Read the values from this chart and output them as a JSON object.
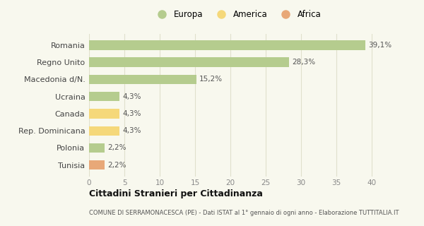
{
  "categories": [
    "Romania",
    "Regno Unito",
    "Macedonia d/N.",
    "Ucraina",
    "Canada",
    "Rep. Dominicana",
    "Polonia",
    "Tunisia"
  ],
  "values": [
    39.1,
    28.3,
    15.2,
    4.3,
    4.3,
    4.3,
    2.2,
    2.2
  ],
  "labels": [
    "39,1%",
    "28,3%",
    "15,2%",
    "4,3%",
    "4,3%",
    "4,3%",
    "2,2%",
    "2,2%"
  ],
  "colors": [
    "#b5cc8e",
    "#b5cc8e",
    "#b5cc8e",
    "#b5cc8e",
    "#f5d87a",
    "#f5d87a",
    "#b5cc8e",
    "#e8a878"
  ],
  "legend": [
    {
      "label": "Europa",
      "color": "#b5cc8e"
    },
    {
      "label": "America",
      "color": "#f5d87a"
    },
    {
      "label": "Africa",
      "color": "#e8a878"
    }
  ],
  "xlim": [
    0,
    42
  ],
  "xticks": [
    0,
    5,
    10,
    15,
    20,
    25,
    30,
    35,
    40
  ],
  "title": "Cittadini Stranieri per Cittadinanza",
  "subtitle": "COMUNE DI SERRAMONACESCA (PE) - Dati ISTAT al 1° gennaio di ogni anno - Elaborazione TUTTITALIA.IT",
  "background_color": "#f8f8ee",
  "bar_height": 0.55,
  "grid_color": "#e0e0cc"
}
